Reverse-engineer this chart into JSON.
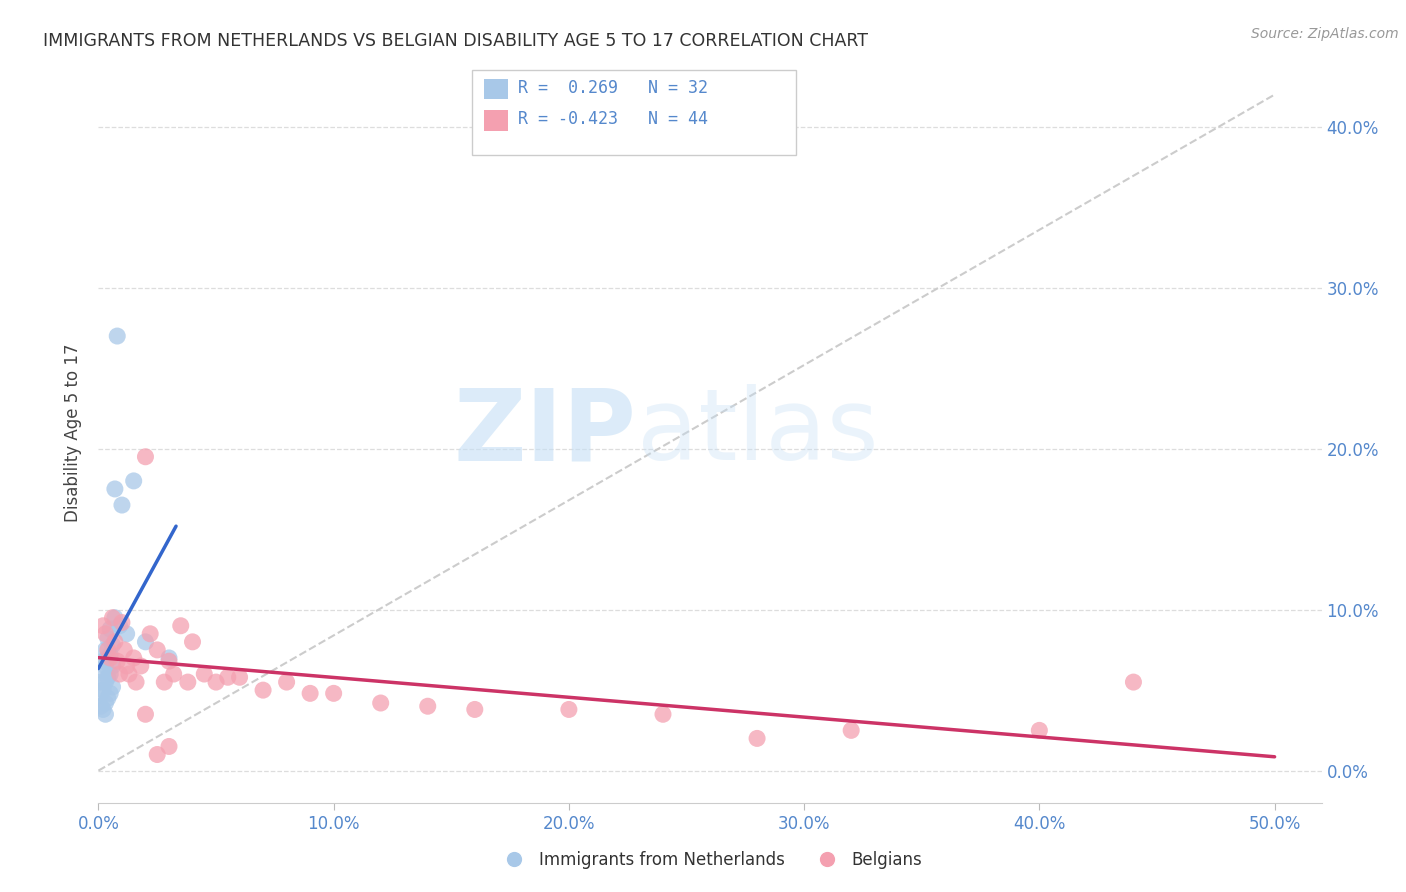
{
  "title": "IMMIGRANTS FROM NETHERLANDS VS BELGIAN DISABILITY AGE 5 TO 17 CORRELATION CHART",
  "source": "Source: ZipAtlas.com",
  "xlabel_vals": [
    0.0,
    0.1,
    0.2,
    0.3,
    0.4,
    0.5
  ],
  "ylabel": "Disability Age 5 to 17",
  "xlim": [
    0.0,
    0.52
  ],
  "ylim": [
    -0.02,
    0.44
  ],
  "yticks": [
    0.0,
    0.1,
    0.2,
    0.3,
    0.4
  ],
  "blue_color": "#a8c8e8",
  "pink_color": "#f4a0b0",
  "blue_line_color": "#3366cc",
  "pink_line_color": "#cc3366",
  "diagonal_color": "#cccccc",
  "netherlands_x": [
    0.001,
    0.001,
    0.001,
    0.002,
    0.002,
    0.002,
    0.002,
    0.003,
    0.003,
    0.003,
    0.003,
    0.003,
    0.004,
    0.004,
    0.004,
    0.004,
    0.005,
    0.005,
    0.005,
    0.005,
    0.006,
    0.006,
    0.006,
    0.007,
    0.007,
    0.008,
    0.009,
    0.01,
    0.012,
    0.015,
    0.02,
    0.03
  ],
  "netherlands_y": [
    0.055,
    0.048,
    0.04,
    0.068,
    0.062,
    0.05,
    0.038,
    0.075,
    0.065,
    0.055,
    0.042,
    0.035,
    0.082,
    0.07,
    0.058,
    0.045,
    0.088,
    0.072,
    0.06,
    0.048,
    0.078,
    0.065,
    0.052,
    0.175,
    0.095,
    0.27,
    0.09,
    0.165,
    0.085,
    0.18,
    0.08,
    0.07
  ],
  "belgians_x": [
    0.002,
    0.003,
    0.004,
    0.005,
    0.006,
    0.007,
    0.008,
    0.009,
    0.01,
    0.011,
    0.012,
    0.013,
    0.015,
    0.016,
    0.018,
    0.02,
    0.022,
    0.025,
    0.028,
    0.03,
    0.032,
    0.035,
    0.038,
    0.04,
    0.045,
    0.05,
    0.055,
    0.06,
    0.07,
    0.08,
    0.09,
    0.1,
    0.12,
    0.14,
    0.16,
    0.2,
    0.24,
    0.28,
    0.32,
    0.4,
    0.44,
    0.02,
    0.025,
    0.03
  ],
  "belgians_y": [
    0.09,
    0.085,
    0.075,
    0.07,
    0.095,
    0.08,
    0.068,
    0.06,
    0.092,
    0.075,
    0.065,
    0.06,
    0.07,
    0.055,
    0.065,
    0.195,
    0.085,
    0.075,
    0.055,
    0.068,
    0.06,
    0.09,
    0.055,
    0.08,
    0.06,
    0.055,
    0.058,
    0.058,
    0.05,
    0.055,
    0.048,
    0.048,
    0.042,
    0.04,
    0.038,
    0.038,
    0.035,
    0.02,
    0.025,
    0.025,
    0.055,
    0.035,
    0.01,
    0.015
  ],
  "blue_line_x": [
    0.0,
    0.035
  ],
  "blue_line_intercept": 0.062,
  "blue_line_slope": 4.0,
  "pink_line_x": [
    0.0,
    0.5
  ],
  "pink_line_intercept": 0.082,
  "pink_line_slope": -0.14
}
